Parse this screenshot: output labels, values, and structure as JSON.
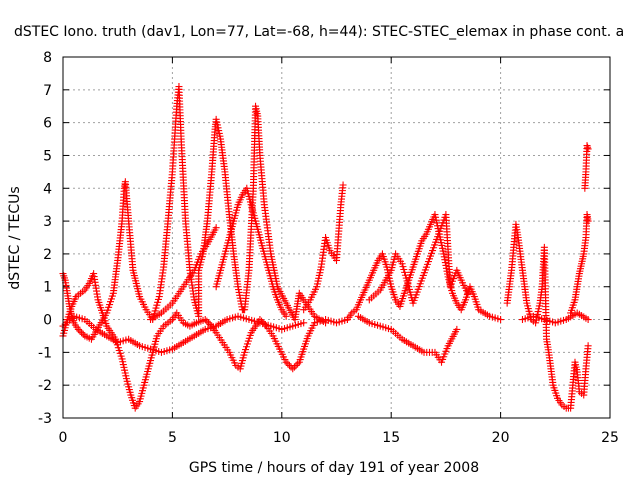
{
  "chart_data": {
    "type": "scatter",
    "title": "dSTEC Iono. truth (dav1, Lon=77, Lat=-68, h=44): STEC-STEC_elemax in phase cont. a",
    "xlabel": "GPS time / hours of day 191 of year 2008",
    "ylabel": "dSTEC  / TECUs",
    "xlim": [
      0,
      25
    ],
    "ylim": [
      -3,
      8
    ],
    "xticks": [
      0,
      5,
      10,
      15,
      20,
      25
    ],
    "yticks": [
      -3,
      -2,
      -1,
      0,
      1,
      2,
      3,
      4,
      5,
      6,
      7,
      8
    ],
    "xtick_labels": [
      "0",
      "5",
      "10",
      "15",
      "20",
      "25"
    ],
    "ytick_labels": [
      "-3",
      "-2",
      "-1",
      "0",
      "1",
      "2",
      "3",
      "4",
      "5",
      "6",
      "7",
      "8"
    ],
    "grid": true,
    "marker": "+",
    "marker_color": "#ff0000",
    "series": [
      {
        "points": [
          [
            0.0,
            1.4
          ],
          [
            0.1,
            1.2
          ],
          [
            0.2,
            0.8
          ],
          [
            0.3,
            0.4
          ],
          [
            0.4,
            0.1
          ],
          [
            0.5,
            -0.1
          ],
          [
            0.7,
            -0.3
          ],
          [
            1.0,
            -0.5
          ],
          [
            1.3,
            -0.6
          ],
          [
            2.0,
            0.2
          ],
          [
            2.3,
            0.8
          ],
          [
            2.5,
            1.8
          ],
          [
            2.7,
            3.0
          ],
          [
            2.8,
            4.0
          ],
          [
            2.85,
            4.2
          ],
          [
            3.0,
            3.0
          ],
          [
            3.2,
            1.5
          ],
          [
            3.5,
            0.7
          ],
          [
            3.8,
            0.3
          ],
          [
            4.1,
            0.0
          ],
          [
            4.4,
            0.7
          ],
          [
            4.6,
            1.6
          ],
          [
            4.8,
            3.0
          ],
          [
            5.0,
            4.5
          ],
          [
            5.1,
            5.5
          ],
          [
            5.2,
            6.5
          ],
          [
            5.3,
            7.1
          ],
          [
            5.4,
            5.5
          ],
          [
            5.6,
            3.0
          ],
          [
            5.8,
            1.5
          ],
          [
            6.0,
            0.6
          ],
          [
            6.2,
            0.1
          ],
          [
            6.2,
            1.5
          ],
          [
            6.4,
            2.0
          ],
          [
            6.6,
            3.0
          ],
          [
            6.8,
            4.5
          ],
          [
            6.95,
            5.8
          ],
          [
            7.0,
            6.1
          ],
          [
            7.2,
            5.5
          ],
          [
            7.4,
            4.5
          ],
          [
            7.6,
            3.2
          ],
          [
            7.8,
            2.0
          ],
          [
            8.0,
            1.0
          ],
          [
            8.2,
            0.3
          ],
          [
            8.3,
            0.3
          ],
          [
            8.5,
            1.5
          ],
          [
            8.7,
            4.0
          ],
          [
            8.8,
            6.5
          ],
          [
            8.9,
            6.2
          ],
          [
            9.0,
            5.0
          ],
          [
            9.2,
            3.5
          ],
          [
            9.5,
            2.0
          ],
          [
            9.8,
            1.0
          ],
          [
            10.2,
            0.5
          ],
          [
            10.6,
            0.0
          ],
          [
            10.7,
            0.4
          ],
          [
            10.8,
            0.8
          ],
          [
            11.0,
            0.6
          ],
          [
            11.5,
            0.1
          ],
          [
            12.0,
            -0.1
          ],
          [
            11.0,
            0.3
          ],
          [
            11.3,
            0.6
          ],
          [
            11.6,
            1.0
          ],
          [
            11.8,
            1.6
          ],
          [
            12.0,
            2.5
          ],
          [
            12.2,
            2.1
          ],
          [
            12.5,
            1.8
          ],
          [
            12.7,
            3.5
          ],
          [
            12.8,
            4.1
          ]
        ]
      },
      {
        "points": [
          [
            0.0,
            -0.5
          ],
          [
            0.2,
            0.0
          ],
          [
            0.4,
            0.4
          ],
          [
            0.6,
            0.7
          ],
          [
            0.8,
            0.8
          ],
          [
            1.0,
            0.9
          ],
          [
            1.2,
            1.1
          ],
          [
            1.4,
            1.4
          ],
          [
            1.6,
            0.6
          ],
          [
            1.8,
            0.2
          ],
          [
            2.0,
            -0.2
          ],
          [
            2.4,
            -0.6
          ],
          [
            2.7,
            -1.2
          ],
          [
            2.9,
            -1.8
          ],
          [
            3.1,
            -2.3
          ],
          [
            3.3,
            -2.7
          ],
          [
            3.5,
            -2.5
          ],
          [
            3.7,
            -2.0
          ],
          [
            3.9,
            -1.5
          ],
          [
            4.1,
            -1.0
          ],
          [
            4.3,
            -0.5
          ],
          [
            4.6,
            -0.2
          ],
          [
            5.0,
            0.0
          ],
          [
            5.2,
            0.2
          ],
          [
            5.5,
            -0.1
          ],
          [
            5.8,
            -0.2
          ],
          [
            6.1,
            -0.1
          ],
          [
            6.5,
            0.0
          ],
          [
            6.8,
            -0.2
          ],
          [
            7.0,
            -0.4
          ],
          [
            7.3,
            -0.7
          ],
          [
            7.6,
            -1.0
          ],
          [
            7.9,
            -1.4
          ],
          [
            8.1,
            -1.5
          ],
          [
            8.3,
            -1.0
          ],
          [
            8.6,
            -0.4
          ],
          [
            9.0,
            0.0
          ],
          [
            9.3,
            -0.2
          ],
          [
            9.6,
            -0.5
          ],
          [
            9.9,
            -0.9
          ],
          [
            10.2,
            -1.3
          ],
          [
            10.5,
            -1.5
          ],
          [
            10.8,
            -1.3
          ],
          [
            11.0,
            -0.9
          ],
          [
            11.2,
            -0.5
          ],
          [
            11.5,
            -0.1
          ],
          [
            12.0,
            0.0
          ],
          [
            12.5,
            -0.1
          ],
          [
            13.0,
            0.0
          ]
        ]
      },
      {
        "points": [
          [
            0.0,
            -0.2
          ],
          [
            0.5,
            0.1
          ],
          [
            1.0,
            0.0
          ],
          [
            1.5,
            -0.3
          ],
          [
            2.0,
            -0.5
          ],
          [
            2.5,
            -0.7
          ],
          [
            3.0,
            -0.6
          ],
          [
            3.5,
            -0.8
          ],
          [
            4.0,
            -0.9
          ],
          [
            4.5,
            -1.0
          ],
          [
            5.0,
            -0.9
          ],
          [
            5.5,
            -0.7
          ],
          [
            6.0,
            -0.5
          ],
          [
            6.5,
            -0.3
          ],
          [
            7.0,
            -0.2
          ],
          [
            7.5,
            0.0
          ],
          [
            8.0,
            0.1
          ],
          [
            8.5,
            0.0
          ],
          [
            9.0,
            -0.1
          ],
          [
            9.5,
            -0.2
          ],
          [
            10.0,
            -0.3
          ],
          [
            10.5,
            -0.2
          ],
          [
            11.0,
            -0.1
          ],
          [
            4.0,
            0.0
          ],
          [
            4.5,
            0.2
          ],
          [
            5.0,
            0.5
          ],
          [
            5.5,
            1.0
          ],
          [
            6.0,
            1.5
          ],
          [
            6.3,
            2.0
          ],
          [
            6.6,
            2.3
          ],
          [
            7.0,
            2.8
          ]
        ]
      },
      {
        "points": [
          [
            7.0,
            1.0
          ],
          [
            7.2,
            1.5
          ],
          [
            7.4,
            2.0
          ],
          [
            7.6,
            2.5
          ],
          [
            7.8,
            3.0
          ],
          [
            8.0,
            3.5
          ],
          [
            8.2,
            3.8
          ],
          [
            8.4,
            4.0
          ],
          [
            8.6,
            3.5
          ],
          [
            8.8,
            3.0
          ],
          [
            9.0,
            2.5
          ],
          [
            9.2,
            2.0
          ],
          [
            9.4,
            1.5
          ],
          [
            9.6,
            1.0
          ],
          [
            9.8,
            0.6
          ],
          [
            10.0,
            0.3
          ],
          [
            10.2,
            0.1
          ]
        ]
      },
      {
        "points": [
          [
            13.0,
            0.0
          ],
          [
            13.2,
            0.2
          ],
          [
            13.4,
            0.3
          ],
          [
            13.6,
            0.6
          ],
          [
            13.8,
            0.9
          ],
          [
            14.0,
            1.2
          ],
          [
            14.2,
            1.5
          ],
          [
            14.4,
            1.8
          ],
          [
            14.6,
            2.0
          ],
          [
            14.8,
            1.6
          ],
          [
            15.0,
            1.0
          ],
          [
            15.2,
            0.6
          ],
          [
            15.4,
            0.4
          ],
          [
            15.6,
            0.8
          ],
          [
            15.8,
            1.2
          ],
          [
            16.0,
            1.6
          ],
          [
            16.2,
            2.0
          ],
          [
            16.4,
            2.4
          ],
          [
            16.6,
            2.6
          ],
          [
            16.8,
            2.9
          ],
          [
            17.0,
            3.2
          ],
          [
            17.2,
            2.6
          ],
          [
            17.4,
            2.0
          ],
          [
            17.6,
            1.3
          ],
          [
            17.8,
            0.8
          ],
          [
            18.0,
            0.5
          ],
          [
            18.2,
            0.3
          ],
          [
            18.4,
            0.6
          ],
          [
            18.6,
            1.0
          ],
          [
            18.8,
            0.7
          ],
          [
            19.0,
            0.3
          ],
          [
            19.5,
            0.1
          ],
          [
            20.0,
            0.0
          ],
          [
            13.5,
            0.1
          ],
          [
            14.0,
            -0.1
          ],
          [
            14.5,
            -0.2
          ],
          [
            15.0,
            -0.3
          ],
          [
            15.5,
            -0.6
          ],
          [
            16.0,
            -0.8
          ],
          [
            16.5,
            -1.0
          ],
          [
            17.0,
            -1.0
          ],
          [
            17.3,
            -1.3
          ],
          [
            17.6,
            -0.8
          ],
          [
            18.0,
            -0.3
          ],
          [
            14.0,
            0.6
          ],
          [
            14.5,
            0.9
          ],
          [
            15.0,
            1.5
          ],
          [
            15.2,
            2.0
          ],
          [
            15.5,
            1.7
          ],
          [
            15.8,
            1.0
          ],
          [
            16.0,
            0.5
          ],
          [
            17.5,
            3.2
          ],
          [
            17.7,
            1.0
          ],
          [
            18.0,
            1.5
          ],
          [
            18.2,
            1.2
          ],
          [
            18.5,
            0.8
          ]
        ]
      },
      {
        "points": [
          [
            20.3,
            0.5
          ],
          [
            20.5,
            1.5
          ],
          [
            20.7,
            2.9
          ],
          [
            20.8,
            2.5
          ],
          [
            21.0,
            1.5
          ],
          [
            21.2,
            0.5
          ],
          [
            21.4,
            0.0
          ],
          [
            21.6,
            -0.1
          ],
          [
            21.8,
            0.5
          ],
          [
            21.9,
            1.0
          ],
          [
            22.0,
            2.2
          ],
          [
            22.1,
            -0.6
          ],
          [
            22.2,
            -1.0
          ],
          [
            22.3,
            -1.5
          ],
          [
            22.4,
            -2.0
          ],
          [
            22.6,
            -2.4
          ],
          [
            22.8,
            -2.6
          ],
          [
            23.0,
            -2.7
          ],
          [
            23.2,
            -2.7
          ],
          [
            23.3,
            -2.0
          ],
          [
            23.4,
            -1.3
          ],
          [
            23.5,
            -1.6
          ],
          [
            23.6,
            -2.2
          ],
          [
            23.8,
            -2.3
          ],
          [
            23.9,
            -1.5
          ],
          [
            24.0,
            -0.8
          ],
          [
            23.2,
            0.2
          ],
          [
            23.4,
            0.6
          ],
          [
            23.5,
            1.0
          ],
          [
            23.6,
            1.4
          ],
          [
            23.7,
            1.7
          ],
          [
            23.8,
            2.0
          ],
          [
            23.9,
            2.5
          ],
          [
            23.95,
            3.2
          ],
          [
            24.0,
            3.0
          ],
          [
            23.85,
            4.0
          ],
          [
            23.9,
            4.5
          ],
          [
            23.95,
            5.3
          ],
          [
            24.0,
            5.2
          ],
          [
            21.0,
            0.0
          ],
          [
            21.5,
            0.1
          ],
          [
            22.0,
            0.0
          ],
          [
            22.5,
            -0.1
          ],
          [
            23.0,
            0.0
          ],
          [
            23.5,
            0.2
          ],
          [
            24.0,
            0.0
          ]
        ]
      }
    ]
  }
}
